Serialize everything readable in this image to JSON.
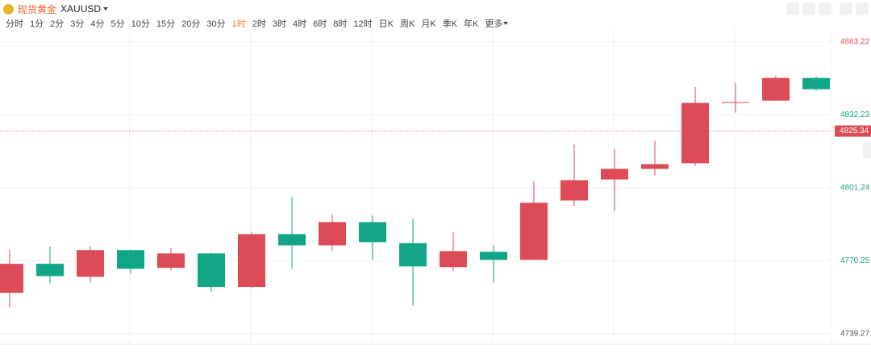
{
  "header": {
    "title": "现货黄金",
    "symbol": "XAUUSD",
    "timeframes": [
      "分时",
      "1分",
      "2分",
      "3分",
      "4分",
      "5分",
      "10分",
      "15分",
      "20分",
      "30分",
      "1时",
      "2时",
      "3时",
      "4时",
      "6时",
      "8时",
      "12时",
      "日K",
      "周K",
      "月K",
      "季K",
      "年K",
      "更多"
    ],
    "active_timeframe": 10
  },
  "chart_data": {
    "type": "candlestick",
    "open": [
      4756.7,
      4769.0,
      4763.5,
      4774.8,
      4767.3,
      4773.4,
      4759.1,
      4781.6,
      4776.8,
      4786.7,
      4777.8,
      4767.6,
      4774.1,
      4770.7,
      4795.9,
      4804.8,
      4809.3,
      4811.7,
      4837.3,
      4838.3,
      4847.9
    ],
    "high": [
      4775.1,
      4776.5,
      4776.5,
      4775.0,
      4775.8,
      4773.8,
      4782.3,
      4797.3,
      4790.1,
      4789.5,
      4788.1,
      4782.6,
      4776.8,
      4804.1,
      4819.5,
      4817.8,
      4821.2,
      4844.1,
      4845.8,
      4848.9,
      4848.5
    ],
    "low": [
      4750.5,
      4760.8,
      4761.1,
      4764.9,
      4766.2,
      4757.0,
      4758.8,
      4766.9,
      4774.4,
      4770.7,
      4751.2,
      4765.9,
      4761.1,
      4770.5,
      4793.6,
      4791.5,
      4806.5,
      4810.6,
      4833.2,
      4838.1,
      4842.4
    ],
    "close": [
      4769.0,
      4763.8,
      4774.8,
      4766.9,
      4773.4,
      4759.1,
      4781.6,
      4776.8,
      4786.7,
      4778.2,
      4767.9,
      4774.4,
      4770.7,
      4794.9,
      4804.5,
      4809.3,
      4811.3,
      4837.3,
      4837.6,
      4847.9,
      4843.1
    ],
    "up_color": "#dd4b57",
    "down_color": "#11a688",
    "ylim": [
      4735.5,
      4867.3
    ],
    "yticks": [
      4739.27,
      4770.25,
      4801.24,
      4832.23,
      4863.22
    ],
    "ytick_colors": [
      "#555555",
      "#11a688",
      "#11a688",
      "#11a688",
      "#dd4b57"
    ],
    "current_price": 4825.34,
    "grid": true
  }
}
